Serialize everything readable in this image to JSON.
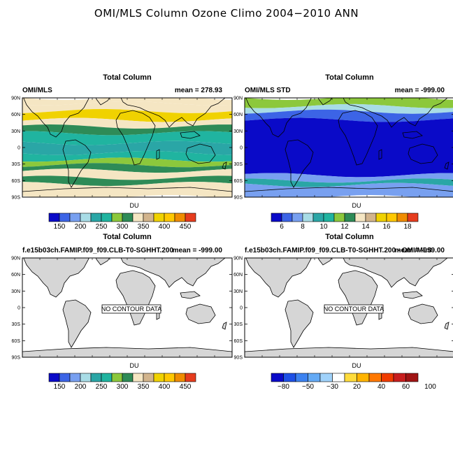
{
  "figure_title": "OMI/MLS Column Ozone Climo 2004−2010 ANN",
  "colors": {
    "land": "#d6d6d6",
    "palette_ozone": [
      "#0a0ac8",
      "#3c64e6",
      "#78a0f0",
      "#a8dce6",
      "#2aa6a6",
      "#20b4a0",
      "#8cc83c",
      "#2e8b57",
      "#f5e6c3",
      "#d2b48c",
      "#f0d200",
      "#ffc800",
      "#f08c00",
      "#e63c1e",
      "#c81e1e",
      "#a01414"
    ],
    "palette_std": [
      "#0a0ac8",
      "#3c64e6",
      "#78a0f0",
      "#a8dce6",
      "#2aa6a6",
      "#20b4a0",
      "#8cc83c",
      "#2e8b57",
      "#f5e6c3",
      "#d2b48c",
      "#f0d200",
      "#ffc800",
      "#f08c00",
      "#e63c1e",
      "#c81e1e",
      "#a01414"
    ],
    "palette_diff": [
      "#0a0ac8",
      "#1e50e6",
      "#3c82f0",
      "#64aaf5",
      "#a0d2fa",
      "#ffffff",
      "#ffdc3c",
      "#ffb400",
      "#ff7800",
      "#f03c00",
      "#c81e1e",
      "#a01414"
    ]
  },
  "chart_data": [
    {
      "type": "heatmap",
      "title": "Total Column",
      "left_label": "OMI/MLS",
      "right_label": "mean = 278.93",
      "ytick_labels": [
        "90N",
        "60N",
        "30N",
        "0",
        "30S",
        "60S",
        "90S"
      ],
      "colorbar_label": "DU",
      "colorbar_ticks": [
        "150",
        "200",
        "250",
        "300",
        "350",
        "400",
        "450"
      ],
      "zonal_bands": [
        {
          "lat_from": 90,
          "lat_to": 80,
          "level": 8
        },
        {
          "lat_from": 80,
          "lat_to": 66,
          "level": 8
        },
        {
          "lat_from": 66,
          "lat_to": 50,
          "level": 10
        },
        {
          "lat_from": 50,
          "lat_to": 38,
          "level": 8
        },
        {
          "lat_from": 38,
          "lat_to": 26,
          "level": 7
        },
        {
          "lat_from": 26,
          "lat_to": 8,
          "level": 5
        },
        {
          "lat_from": 8,
          "lat_to": -10,
          "level": 4
        },
        {
          "lat_from": -10,
          "lat_to": -22,
          "level": 5
        },
        {
          "lat_from": -22,
          "lat_to": -32,
          "level": 6
        },
        {
          "lat_from": -32,
          "lat_to": -42,
          "level": 7
        },
        {
          "lat_from": -42,
          "lat_to": -55,
          "level": 8
        },
        {
          "lat_from": -55,
          "lat_to": -66,
          "level": 7
        },
        {
          "lat_from": -66,
          "lat_to": -90,
          "level": 8
        }
      ]
    },
    {
      "type": "heatmap",
      "title": "Total Column",
      "left_label": "OMI/MLS STD",
      "right_label": "mean = -999.00",
      "ytick_labels": [
        "90N",
        "60N",
        "30N",
        "0",
        "30S",
        "60S",
        "90S"
      ],
      "colorbar_label": "DU",
      "colorbar_ticks": [
        "6",
        "8",
        "10",
        "12",
        "14",
        "16",
        "18"
      ],
      "zonal_bands": [
        {
          "lat_from": 90,
          "lat_to": 75,
          "level": 6
        },
        {
          "lat_from": 75,
          "lat_to": 65,
          "level": 3
        },
        {
          "lat_from": 65,
          "lat_to": 50,
          "level": 1
        },
        {
          "lat_from": 50,
          "lat_to": -50,
          "level": 0
        },
        {
          "lat_from": -50,
          "lat_to": -60,
          "level": 2
        },
        {
          "lat_from": -60,
          "lat_to": -68,
          "level": 4
        },
        {
          "lat_from": -68,
          "lat_to": -90,
          "level": 2
        }
      ]
    },
    {
      "type": "heatmap",
      "title": "Total Column",
      "left_label": "f.e15b03ch.FAMIP.f09_f09.CLB-T0-SGHHT.200",
      "right_label": "mean = -999.00",
      "ytick_labels": [
        "90N",
        "60N",
        "30N",
        "0",
        "30S",
        "60S",
        "90S"
      ],
      "colorbar_label": "DU",
      "colorbar_ticks": [
        "150",
        "200",
        "250",
        "300",
        "350",
        "400",
        "450"
      ],
      "annotation": "NO CONTOUR DATA"
    },
    {
      "type": "heatmap",
      "title": "Total Column",
      "left_label": "f.e15b03ch.FAMIP.f09_f09.CLB-T0-SGHHT.200 - OMI/MLS",
      "right_label": "mean = -999.00",
      "ytick_labels": [
        "90N",
        "60N",
        "30N",
        "0",
        "30S",
        "60S",
        "90S"
      ],
      "colorbar_label": "DU",
      "colorbar_ticks": [
        "−80",
        "−50",
        "−30",
        "20",
        "40",
        "60",
        "100"
      ],
      "annotation": "NO CONTOUR DATA"
    }
  ]
}
